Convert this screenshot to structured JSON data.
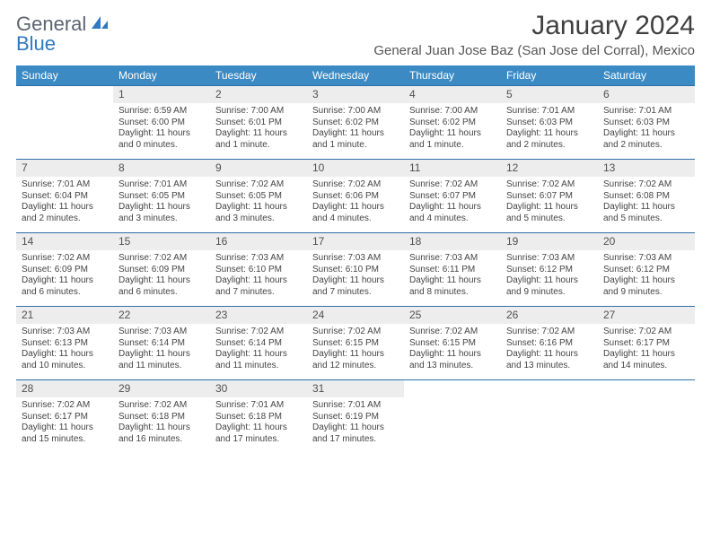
{
  "brand": {
    "line1": "General",
    "line2": "Blue"
  },
  "title": "January 2024",
  "location": "General Juan Jose Baz (San Jose del Corral), Mexico",
  "colors": {
    "header_bg": "#3b8ac4",
    "header_fg": "#ffffff",
    "row_divider": "#2f6fa8",
    "daynum_bg": "#ededed",
    "brand_gray": "#5a6570",
    "brand_blue": "#2f78c2"
  },
  "column_headers": [
    "Sunday",
    "Monday",
    "Tuesday",
    "Wednesday",
    "Thursday",
    "Friday",
    "Saturday"
  ],
  "weeks": [
    [
      {
        "day": "",
        "sunrise": "",
        "sunset": "",
        "daylight": ""
      },
      {
        "day": "1",
        "sunrise": "6:59 AM",
        "sunset": "6:00 PM",
        "daylight": "11 hours and 0 minutes."
      },
      {
        "day": "2",
        "sunrise": "7:00 AM",
        "sunset": "6:01 PM",
        "daylight": "11 hours and 1 minute."
      },
      {
        "day": "3",
        "sunrise": "7:00 AM",
        "sunset": "6:02 PM",
        "daylight": "11 hours and 1 minute."
      },
      {
        "day": "4",
        "sunrise": "7:00 AM",
        "sunset": "6:02 PM",
        "daylight": "11 hours and 1 minute."
      },
      {
        "day": "5",
        "sunrise": "7:01 AM",
        "sunset": "6:03 PM",
        "daylight": "11 hours and 2 minutes."
      },
      {
        "day": "6",
        "sunrise": "7:01 AM",
        "sunset": "6:03 PM",
        "daylight": "11 hours and 2 minutes."
      }
    ],
    [
      {
        "day": "7",
        "sunrise": "7:01 AM",
        "sunset": "6:04 PM",
        "daylight": "11 hours and 2 minutes."
      },
      {
        "day": "8",
        "sunrise": "7:01 AM",
        "sunset": "6:05 PM",
        "daylight": "11 hours and 3 minutes."
      },
      {
        "day": "9",
        "sunrise": "7:02 AM",
        "sunset": "6:05 PM",
        "daylight": "11 hours and 3 minutes."
      },
      {
        "day": "10",
        "sunrise": "7:02 AM",
        "sunset": "6:06 PM",
        "daylight": "11 hours and 4 minutes."
      },
      {
        "day": "11",
        "sunrise": "7:02 AM",
        "sunset": "6:07 PM",
        "daylight": "11 hours and 4 minutes."
      },
      {
        "day": "12",
        "sunrise": "7:02 AM",
        "sunset": "6:07 PM",
        "daylight": "11 hours and 5 minutes."
      },
      {
        "day": "13",
        "sunrise": "7:02 AM",
        "sunset": "6:08 PM",
        "daylight": "11 hours and 5 minutes."
      }
    ],
    [
      {
        "day": "14",
        "sunrise": "7:02 AM",
        "sunset": "6:09 PM",
        "daylight": "11 hours and 6 minutes."
      },
      {
        "day": "15",
        "sunrise": "7:02 AM",
        "sunset": "6:09 PM",
        "daylight": "11 hours and 6 minutes."
      },
      {
        "day": "16",
        "sunrise": "7:03 AM",
        "sunset": "6:10 PM",
        "daylight": "11 hours and 7 minutes."
      },
      {
        "day": "17",
        "sunrise": "7:03 AM",
        "sunset": "6:10 PM",
        "daylight": "11 hours and 7 minutes."
      },
      {
        "day": "18",
        "sunrise": "7:03 AM",
        "sunset": "6:11 PM",
        "daylight": "11 hours and 8 minutes."
      },
      {
        "day": "19",
        "sunrise": "7:03 AM",
        "sunset": "6:12 PM",
        "daylight": "11 hours and 9 minutes."
      },
      {
        "day": "20",
        "sunrise": "7:03 AM",
        "sunset": "6:12 PM",
        "daylight": "11 hours and 9 minutes."
      }
    ],
    [
      {
        "day": "21",
        "sunrise": "7:03 AM",
        "sunset": "6:13 PM",
        "daylight": "11 hours and 10 minutes."
      },
      {
        "day": "22",
        "sunrise": "7:03 AM",
        "sunset": "6:14 PM",
        "daylight": "11 hours and 11 minutes."
      },
      {
        "day": "23",
        "sunrise": "7:02 AM",
        "sunset": "6:14 PM",
        "daylight": "11 hours and 11 minutes."
      },
      {
        "day": "24",
        "sunrise": "7:02 AM",
        "sunset": "6:15 PM",
        "daylight": "11 hours and 12 minutes."
      },
      {
        "day": "25",
        "sunrise": "7:02 AM",
        "sunset": "6:15 PM",
        "daylight": "11 hours and 13 minutes."
      },
      {
        "day": "26",
        "sunrise": "7:02 AM",
        "sunset": "6:16 PM",
        "daylight": "11 hours and 13 minutes."
      },
      {
        "day": "27",
        "sunrise": "7:02 AM",
        "sunset": "6:17 PM",
        "daylight": "11 hours and 14 minutes."
      }
    ],
    [
      {
        "day": "28",
        "sunrise": "7:02 AM",
        "sunset": "6:17 PM",
        "daylight": "11 hours and 15 minutes."
      },
      {
        "day": "29",
        "sunrise": "7:02 AM",
        "sunset": "6:18 PM",
        "daylight": "11 hours and 16 minutes."
      },
      {
        "day": "30",
        "sunrise": "7:01 AM",
        "sunset": "6:18 PM",
        "daylight": "11 hours and 17 minutes."
      },
      {
        "day": "31",
        "sunrise": "7:01 AM",
        "sunset": "6:19 PM",
        "daylight": "11 hours and 17 minutes."
      },
      {
        "day": "",
        "sunrise": "",
        "sunset": "",
        "daylight": ""
      },
      {
        "day": "",
        "sunrise": "",
        "sunset": "",
        "daylight": ""
      },
      {
        "day": "",
        "sunrise": "",
        "sunset": "",
        "daylight": ""
      }
    ]
  ],
  "labels": {
    "sunrise": "Sunrise: ",
    "sunset": "Sunset: ",
    "daylight": "Daylight: "
  }
}
